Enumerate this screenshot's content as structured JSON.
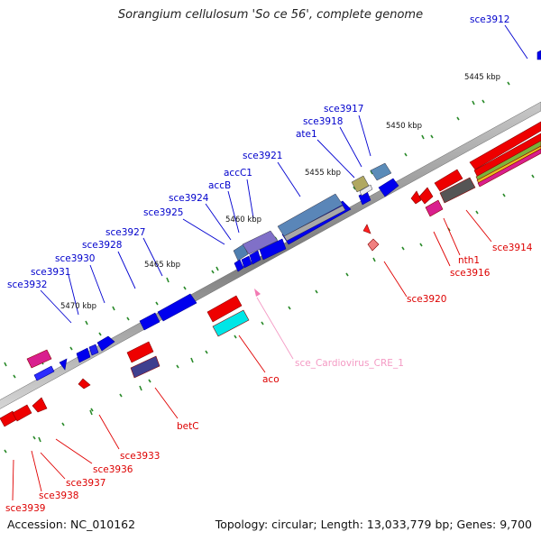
{
  "title": "Sorangium cellulosum 'So ce 56', complete genome",
  "accession": "Accession: NC_010162",
  "summary": "Topology: circular; Length: 13,033,779 bp; Genes: 9,700",
  "scale_labels": [
    "5445 kbp",
    "5450 kbp",
    "5455 kbp",
    "5460 kbp",
    "5465 kbp",
    "5470 kbp"
  ],
  "forward_genes": [
    "sce3912",
    "sce3917",
    "sce3918",
    "ate1",
    "sce3921",
    "accC1",
    "accB",
    "sce3924",
    "sce3925",
    "sce3927",
    "sce3928",
    "sce3930",
    "sce3931",
    "sce3932"
  ],
  "reverse_genes": [
    "sce3914",
    "nth1",
    "sce3916",
    "sce3920",
    "sce_Cardiovirus_CRE_1",
    "aco",
    "betC",
    "sce3933",
    "sce3936",
    "sce3937",
    "sce3938",
    "sce3939"
  ],
  "colors": {
    "forward": "#0000ee",
    "reverse": "#ee0000",
    "backbone": "#888888",
    "ncrna": "#f27ab3"
  }
}
